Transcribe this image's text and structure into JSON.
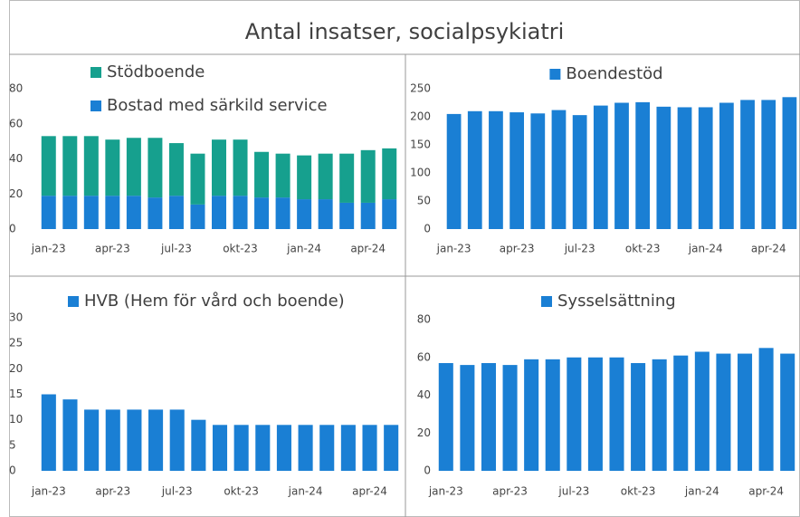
{
  "title": "Antal insatser, socialpsykiatri",
  "chart_data": [
    {
      "type": "bar",
      "stacked": true,
      "categories": [
        "jan-23",
        null,
        null,
        "apr-23",
        null,
        null,
        "jul-23",
        null,
        null,
        "okt-23",
        null,
        null,
        "jan-24",
        null,
        null,
        "apr-24",
        null
      ],
      "series": [
        {
          "name": "Bostad med särkild service",
          "color": "#1a7fd4",
          "values": [
            19,
            19,
            19,
            19,
            19,
            18,
            19,
            14,
            19,
            19,
            18,
            18,
            17,
            17,
            15,
            15,
            17
          ]
        },
        {
          "name": "Stödboende",
          "color": "#16a08e",
          "values": [
            34,
            34,
            34,
            32,
            33,
            34,
            30,
            29,
            32,
            32,
            26,
            25,
            25,
            26,
            28,
            30,
            29
          ]
        }
      ],
      "ylim": [
        0,
        80
      ],
      "yticks": [
        0,
        20,
        40,
        60,
        80
      ]
    },
    {
      "type": "bar",
      "categories": [
        "jan-23",
        null,
        null,
        "apr-23",
        null,
        null,
        "jul-23",
        null,
        null,
        "okt-23",
        null,
        null,
        "jan-24",
        null,
        null,
        "apr-24",
        null
      ],
      "series": [
        {
          "name": "Boendestöd",
          "color": "#1a7fd4",
          "values": [
            205,
            210,
            210,
            208,
            206,
            212,
            203,
            220,
            225,
            226,
            218,
            217,
            217,
            225,
            230,
            230,
            235
          ]
        }
      ],
      "ylim": [
        0,
        250
      ],
      "yticks": [
        0,
        50,
        100,
        150,
        200,
        250
      ]
    },
    {
      "type": "bar",
      "categories": [
        "jan-23",
        null,
        null,
        "apr-23",
        null,
        null,
        "jul-23",
        null,
        null,
        "okt-23",
        null,
        null,
        "jan-24",
        null,
        null,
        "apr-24",
        null
      ],
      "series": [
        {
          "name": "HVB (Hem för vård och boende)",
          "color": "#1a7fd4",
          "values": [
            15,
            14,
            12,
            12,
            12,
            12,
            12,
            10,
            9,
            9,
            9,
            9,
            9,
            9,
            9,
            9,
            9
          ]
        }
      ],
      "ylim": [
        0,
        30
      ],
      "yticks": [
        0,
        5,
        10,
        15,
        20,
        25,
        30
      ]
    },
    {
      "type": "bar",
      "categories": [
        "jan-23",
        null,
        null,
        "apr-23",
        null,
        null,
        "jul-23",
        null,
        null,
        "okt-23",
        null,
        null,
        "jan-24",
        null,
        null,
        "apr-24",
        null
      ],
      "series": [
        {
          "name": "Sysselsättning",
          "color": "#1a7fd4",
          "values": [
            57,
            56,
            57,
            56,
            59,
            59,
            60,
            60,
            60,
            57,
            59,
            61,
            63,
            62,
            62,
            65,
            62
          ]
        }
      ],
      "ylim": [
        0,
        80
      ],
      "yticks": [
        0,
        20,
        40,
        60,
        80
      ]
    }
  ]
}
